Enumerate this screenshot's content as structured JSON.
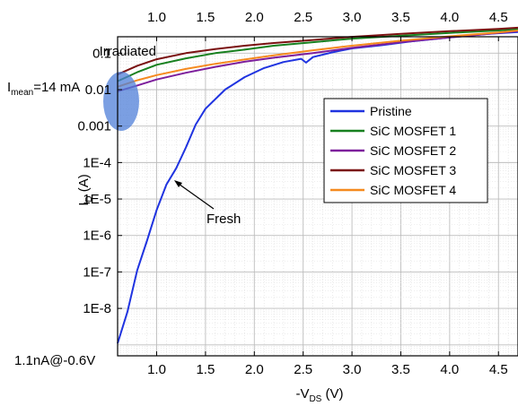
{
  "chart_data": {
    "type": "line",
    "xlabel": "-V",
    "xlabel_sub": "DS",
    "xlabel_unit": " (V)",
    "ylabel": "I",
    "ylabel_sub": "D",
    "ylabel_unit": " (A)",
    "xlim": [
      0.6,
      4.7
    ],
    "ylim_log10": [
      -9.3,
      -0.55
    ],
    "y_scale": "log",
    "grid": true,
    "legend_position": "right-middle",
    "x_ticks": [
      "1.0",
      "1.5",
      "2.0",
      "2.5",
      "3.0",
      "3.5",
      "4.0",
      "4.5"
    ],
    "top_x_ticks": [
      "1.0",
      "1.5",
      "2.0",
      "2.5",
      "3.0",
      "3.5",
      "4.0",
      "4.5"
    ],
    "y_ticks": [
      "0.1",
      "0.01",
      "0.001",
      "1E-4",
      "1E-5",
      "1E-6",
      "1E-7",
      "1E-8"
    ],
    "series": [
      {
        "name": "Pristine",
        "color": "#1f33e0",
        "x": [
          0.6,
          0.7,
          0.8,
          0.9,
          1.0,
          1.1,
          1.2,
          1.3,
          1.4,
          1.5,
          1.7,
          1.9,
          2.1,
          2.3,
          2.48,
          2.53,
          2.6,
          2.8,
          3.0,
          3.3,
          3.6,
          4.0,
          4.4,
          4.7
        ],
        "y": [
          1.1e-09,
          8e-09,
          1.1e-07,
          7e-07,
          5e-06,
          2.5e-05,
          7e-05,
          0.00026,
          0.0011,
          0.003,
          0.01,
          0.022,
          0.039,
          0.057,
          0.07,
          0.055,
          0.078,
          0.105,
          0.135,
          0.165,
          0.21,
          0.27,
          0.34,
          0.38
        ]
      },
      {
        "name": "SiC MOSFET 1",
        "color": "#17801f",
        "x": [
          0.6,
          0.8,
          1.0,
          1.3,
          1.6,
          1.9,
          2.2,
          2.6,
          3.0,
          3.5,
          4.0,
          4.5,
          4.7
        ],
        "y": [
          0.017,
          0.03,
          0.048,
          0.072,
          0.1,
          0.125,
          0.16,
          0.2,
          0.25,
          0.3,
          0.36,
          0.42,
          0.45
        ]
      },
      {
        "name": "SiC MOSFET 2",
        "color": "#7d1f9c",
        "x": [
          0.6,
          0.8,
          1.0,
          1.3,
          1.6,
          1.9,
          2.2,
          2.6,
          3.0,
          3.5,
          4.0,
          4.5,
          4.7
        ],
        "y": [
          0.009,
          0.013,
          0.019,
          0.029,
          0.042,
          0.058,
          0.075,
          0.1,
          0.14,
          0.2,
          0.27,
          0.36,
          0.4
        ]
      },
      {
        "name": "SiC MOSFET 3",
        "color": "#7a1111",
        "x": [
          0.6,
          0.8,
          1.0,
          1.3,
          1.6,
          1.9,
          2.2,
          2.6,
          3.0,
          3.5,
          4.0,
          4.5,
          4.7
        ],
        "y": [
          0.026,
          0.045,
          0.068,
          0.1,
          0.13,
          0.16,
          0.19,
          0.23,
          0.28,
          0.34,
          0.4,
          0.46,
          0.5
        ]
      },
      {
        "name": "SiC MOSFET 4",
        "color": "#f58a1f",
        "x": [
          0.6,
          0.8,
          1.0,
          1.3,
          1.6,
          1.9,
          2.2,
          2.6,
          3.0,
          3.5,
          4.0,
          4.5,
          4.7
        ],
        "y": [
          0.012,
          0.018,
          0.025,
          0.037,
          0.051,
          0.067,
          0.087,
          0.12,
          0.16,
          0.22,
          0.29,
          0.37,
          0.42
        ]
      }
    ],
    "annotations": {
      "irradiated": "Irradiated",
      "imean_prefix": "I",
      "imean_sub": "mean",
      "imean_suffix": "=14 mA",
      "fresh": "Fresh",
      "low_point": "1.1nA@-0.6V",
      "highlight_color": "#4f7fd8"
    }
  }
}
